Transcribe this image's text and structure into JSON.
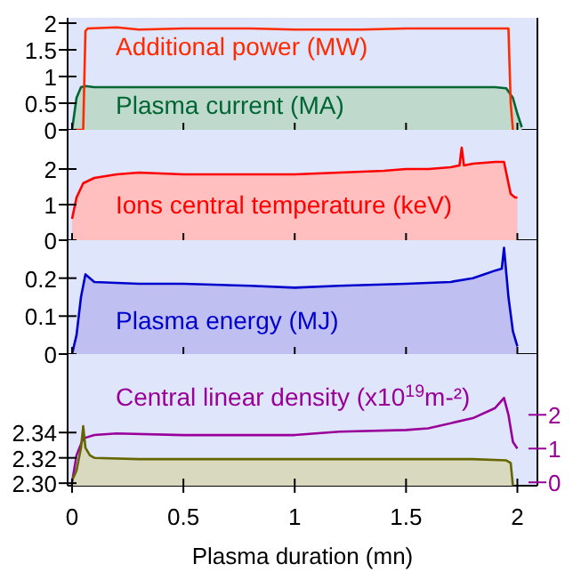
{
  "chart_data": [
    {
      "type": "area",
      "xlim": [
        -0.02,
        2.09
      ],
      "xticks": [
        0,
        0.5,
        1,
        1.5,
        2
      ],
      "ylim": [
        0,
        2.1
      ],
      "yticks": [
        0,
        0.5,
        1,
        1.5,
        2
      ],
      "tick_labels": "y",
      "series": [
        {
          "name": "Additional power (MW)",
          "type": "line",
          "color": "#ff2a00",
          "x": [
            0,
            0.05,
            0.06,
            0.07,
            0.2,
            0.3,
            0.5,
            0.8,
            1.0,
            1.3,
            1.5,
            1.7,
            1.95,
            1.96,
            1.97,
            1.98
          ],
          "values": [
            0,
            0,
            1.85,
            1.9,
            1.92,
            1.88,
            1.9,
            1.9,
            1.88,
            1.88,
            1.9,
            1.9,
            1.9,
            1.9,
            0.5,
            0
          ]
        },
        {
          "name": "Plasma current (MA)",
          "color": "#006633",
          "x": [
            0,
            0.02,
            0.04,
            0.06,
            0.1,
            0.5,
            1.0,
            1.5,
            1.9,
            1.95,
            1.98,
            2.0,
            2.02
          ],
          "values": [
            0,
            0.6,
            0.8,
            0.82,
            0.8,
            0.8,
            0.8,
            0.8,
            0.8,
            0.78,
            0.6,
            0.3,
            0.05
          ]
        }
      ]
    },
    {
      "type": "area",
      "xlim": [
        -0.02,
        2.09
      ],
      "xticks": [
        0,
        0.5,
        1,
        1.5,
        2
      ],
      "ylim": [
        0,
        3.1
      ],
      "yticks": [
        0,
        1,
        2
      ],
      "tick_labels": "y",
      "series": [
        {
          "name": "Ions central temperature (keV)",
          "color": "#ff0000",
          "x": [
            0,
            0.02,
            0.05,
            0.1,
            0.2,
            0.3,
            0.5,
            0.8,
            1.0,
            1.2,
            1.4,
            1.5,
            1.6,
            1.7,
            1.74,
            1.75,
            1.76,
            1.8,
            1.9,
            1.94,
            1.96,
            1.97,
            1.99,
            2.0
          ],
          "values": [
            0.6,
            1.2,
            1.6,
            1.75,
            1.85,
            1.9,
            1.85,
            1.85,
            1.85,
            1.9,
            1.95,
            2.0,
            2.0,
            2.05,
            2.1,
            2.6,
            2.1,
            2.15,
            2.2,
            2.2,
            1.6,
            1.3,
            1.2,
            1.2
          ]
        }
      ]
    },
    {
      "type": "area",
      "xlim": [
        -0.02,
        2.09
      ],
      "xticks": [
        0,
        0.5,
        1,
        1.5,
        2
      ],
      "ylim": [
        0,
        0.3
      ],
      "yticks": [
        0,
        0.1,
        0.2
      ],
      "tick_labels": "y",
      "series": [
        {
          "name": "Plasma energy (MJ)",
          "color": "#0000cc",
          "x": [
            0,
            0.02,
            0.04,
            0.06,
            0.1,
            0.3,
            0.5,
            0.8,
            1.0,
            1.2,
            1.5,
            1.7,
            1.8,
            1.85,
            1.9,
            1.93,
            1.94,
            1.96,
            1.98,
            2.0
          ],
          "values": [
            0,
            0.05,
            0.15,
            0.21,
            0.19,
            0.185,
            0.185,
            0.18,
            0.175,
            0.18,
            0.185,
            0.19,
            0.2,
            0.21,
            0.22,
            0.225,
            0.28,
            0.15,
            0.06,
            0.02
          ]
        }
      ]
    },
    {
      "type": "area",
      "xlim": [
        -0.02,
        2.09
      ],
      "xticks": [
        0,
        0.5,
        1,
        1.5,
        2
      ],
      "xlabel": "Plasma duration (mn)",
      "ylim": [
        2.298,
        2.402
      ],
      "yticks": [
        {
          "value": 2.3,
          "label": "2.30"
        },
        {
          "value": 2.32,
          "label": "2.32"
        },
        {
          "value": 2.34,
          "label": "2.34"
        }
      ],
      "y2lim": [
        -0.1,
        3.8
      ],
      "y2ticks": [
        0,
        1,
        2
      ],
      "series": [
        {
          "color": "#666600",
          "x": [
            0,
            0.02,
            0.04,
            0.05,
            0.06,
            0.08,
            0.1,
            0.3,
            0.5,
            1.0,
            1.5,
            1.8,
            1.95,
            1.97,
            1.98
          ],
          "values": [
            2.302,
            2.31,
            2.328,
            2.345,
            2.328,
            2.322,
            2.32,
            2.319,
            2.319,
            2.319,
            2.319,
            2.319,
            2.318,
            2.316,
            2.298
          ]
        },
        {
          "name": "Central linear density (x10$^{19}$m-²)",
          "type": "line",
          "axis": "y2",
          "color": "#990099",
          "x": [
            0,
            0.02,
            0.05,
            0.1,
            0.2,
            0.5,
            1.0,
            1.2,
            1.5,
            1.6,
            1.8,
            1.9,
            1.94,
            1.96,
            1.98,
            2.0
          ],
          "values": [
            0,
            0.8,
            1.3,
            1.4,
            1.45,
            1.4,
            1.4,
            1.5,
            1.55,
            1.6,
            1.9,
            2.2,
            2.5,
            2.0,
            1.2,
            1.0
          ]
        }
      ]
    }
  ]
}
